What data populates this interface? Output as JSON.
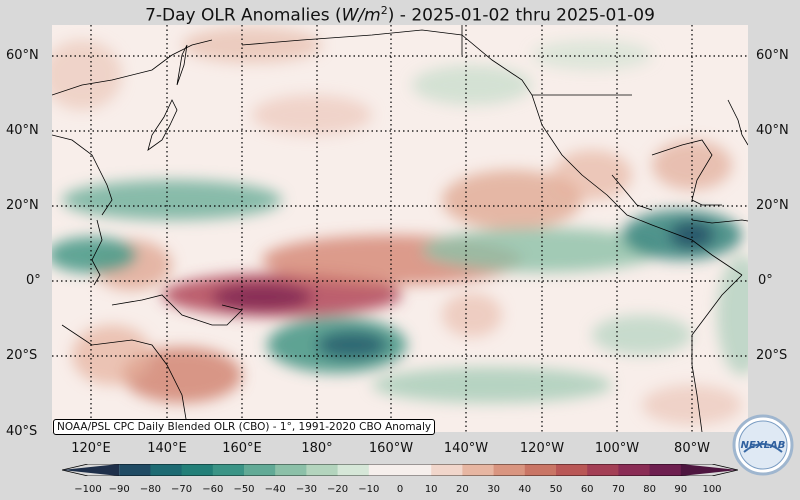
{
  "title": {
    "prefix": "7-Day OLR Anomalies (",
    "unit_base": "W/m",
    "unit_exp": "2",
    "suffix": ") - 2025-01-02 thru 2025-01-09"
  },
  "lat_labels": [
    "60°N",
    "40°N",
    "20°N",
    "0°",
    "20°S",
    "40°S"
  ],
  "lon_labels": [
    "120°E",
    "140°E",
    "160°E",
    "180°",
    "160°W",
    "140°W",
    "120°W",
    "100°W",
    "80°W"
  ],
  "source_note": "NOAA/PSL CPC Daily Blended OLR (CBO) - 1°, 1991-2020 CBO Anomaly",
  "colorbar": {
    "ticks": [
      "−100",
      "−90",
      "−80",
      "−70",
      "−60",
      "−50",
      "−40",
      "−30",
      "−20",
      "−10",
      "0",
      "10",
      "20",
      "30",
      "40",
      "50",
      "60",
      "70",
      "80",
      "90",
      "100"
    ],
    "min": -100,
    "max": 100,
    "colors": [
      "#1e2f4a",
      "#1f4a63",
      "#1d6a72",
      "#237f78",
      "#3b9486",
      "#62aa96",
      "#8cc0a8",
      "#b3d4bd",
      "#d6e7d8",
      "#f6efec",
      "#f6efec",
      "#f1d6cb",
      "#e7b6a2",
      "#d99580",
      "#c97565",
      "#b95756",
      "#a33f55",
      "#8a2c55",
      "#6e1f50",
      "#4e1640"
    ]
  },
  "logo_text": "NEXLAB"
}
